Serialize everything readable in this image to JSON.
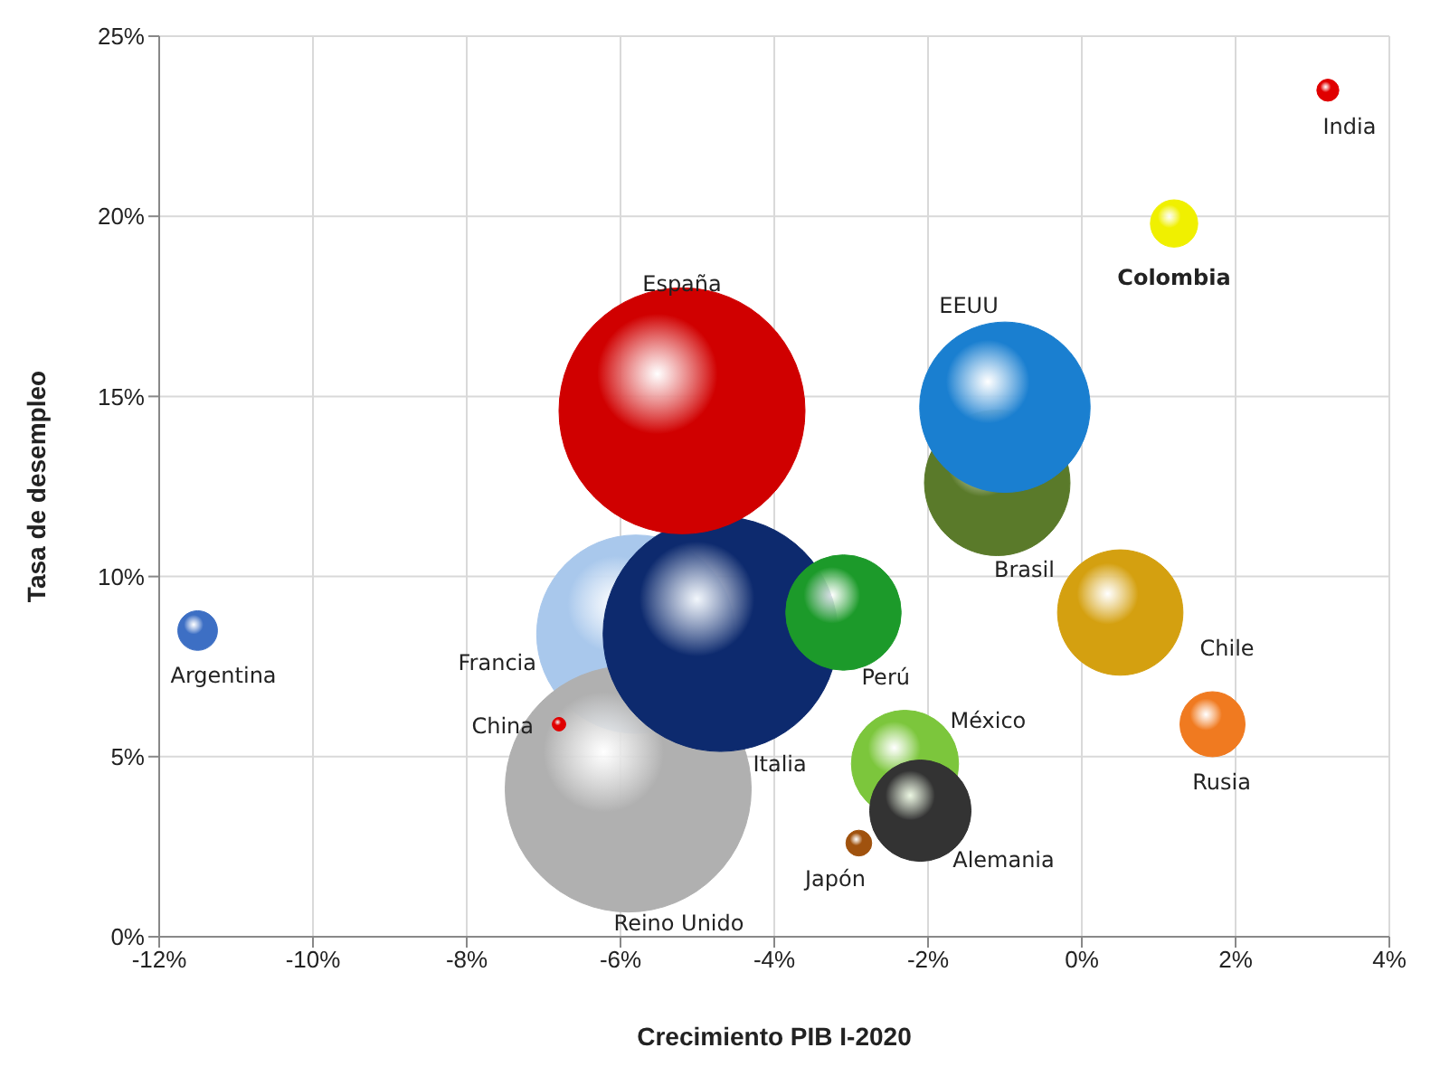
{
  "chart_data": {
    "type": "bubble",
    "xlabel": "Crecimiento PIB I-2020",
    "ylabel": "Tasa de desempleo",
    "xlim": [
      -12,
      4
    ],
    "ylim": [
      0,
      25
    ],
    "xticks": [
      {
        "value": -12,
        "label": "-12%"
      },
      {
        "value": -10,
        "label": "-10%"
      },
      {
        "value": -8,
        "label": "-8%"
      },
      {
        "value": -6,
        "label": "-6%"
      },
      {
        "value": -4,
        "label": "-4%"
      },
      {
        "value": -2,
        "label": "-2%"
      },
      {
        "value": 0,
        "label": "0%"
      },
      {
        "value": 2,
        "label": "2%"
      },
      {
        "value": 4,
        "label": "4%"
      }
    ],
    "yticks": [
      {
        "value": 0,
        "label": "0%"
      },
      {
        "value": 5,
        "label": "5%"
      },
      {
        "value": 10,
        "label": "10%"
      },
      {
        "value": 15,
        "label": "15%"
      },
      {
        "value": 20,
        "label": "20%"
      },
      {
        "value": 25,
        "label": "25%"
      }
    ],
    "grid": true,
    "legend": false,
    "series": [
      {
        "name": "Francia",
        "color": "#a9c8ec",
        "x": [
          -5.8
        ],
        "values": [
          8.4
        ],
        "sizes": [
          0.65
        ]
      },
      {
        "name": "Reino Unido",
        "color": "#b0b0b0",
        "x": [
          -5.9
        ],
        "values": [
          4.1
        ],
        "sizes": [
          1
        ]
      },
      {
        "name": "Italia",
        "color": "#0d2a6e",
        "x": [
          -4.7
        ],
        "values": [
          8.4
        ],
        "sizes": [
          0.91
        ]
      },
      {
        "name": "España",
        "color": "#d00000",
        "x": [
          -5.2
        ],
        "values": [
          14.6
        ],
        "sizes": [
          1
        ]
      },
      {
        "name": "Brasil",
        "color": "#5a7a2a",
        "x": [
          -1.1
        ],
        "values": [
          12.6
        ],
        "sizes": [
          0.35
        ]
      },
      {
        "name": "EEUU",
        "color": "#1a7fd0",
        "x": [
          -1.0
        ],
        "values": [
          14.7
        ],
        "sizes": [
          0.48
        ]
      },
      {
        "name": "Perú",
        "color": "#1c9a2a",
        "x": [
          -3.1
        ],
        "values": [
          9.0
        ],
        "sizes": [
          0.22
        ]
      },
      {
        "name": "Chile",
        "color": "#d4a010",
        "x": [
          0.5
        ],
        "values": [
          9.0
        ],
        "sizes": [
          0.26
        ]
      },
      {
        "name": "México",
        "color": "#7cc63c",
        "x": [
          -2.3
        ],
        "values": [
          4.8
        ],
        "sizes": [
          0.19
        ]
      },
      {
        "name": "Alemania",
        "color": "#333333",
        "x": [
          -2.1
        ],
        "values": [
          3.5
        ],
        "sizes": [
          0.17
        ]
      },
      {
        "name": "Rusia",
        "color": "#f07a20",
        "x": [
          1.7
        ],
        "values": [
          5.9
        ],
        "sizes": [
          0.07
        ]
      },
      {
        "name": "Colombia",
        "color": "#f0f000",
        "x": [
          1.2
        ],
        "values": [
          19.8
        ],
        "sizes": [
          0.037
        ]
      },
      {
        "name": "Argentina",
        "color": "#3d6fc4",
        "x": [
          -11.5
        ],
        "values": [
          8.5
        ],
        "sizes": [
          0.026
        ]
      },
      {
        "name": "Japón",
        "color": "#a0520e",
        "x": [
          -2.9
        ],
        "values": [
          2.6
        ],
        "sizes": [
          0.011
        ]
      },
      {
        "name": "India",
        "color": "#e00000",
        "x": [
          3.2
        ],
        "values": [
          23.5
        ],
        "sizes": [
          0.008
        ]
      },
      {
        "name": "China",
        "color": "#e00000",
        "x": [
          -6.8
        ],
        "values": [
          5.9
        ],
        "sizes": [
          0.003
        ]
      }
    ]
  }
}
